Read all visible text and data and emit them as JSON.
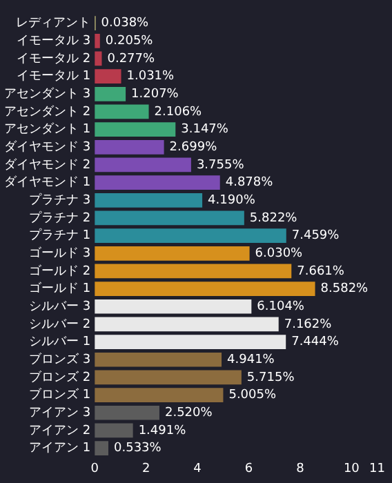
{
  "chart_data": {
    "type": "bar",
    "orientation": "horizontal",
    "categories": [
      "レディアント",
      "イモータル 3",
      "イモータル 2",
      "イモータル 1",
      "アセンダント 3",
      "アセンダント 2",
      "アセンダント 1",
      "ダイヤモンド 3",
      "ダイヤモンド 2",
      "ダイヤモンド 1",
      "プラチナ 3",
      "プラチナ 2",
      "プラチナ 1",
      "ゴールド 3",
      "ゴールド 2",
      "ゴールド 1",
      "シルバー 3",
      "シルバー 2",
      "シルバー 1",
      "ブロンズ 3",
      "ブロンズ 2",
      "ブロンズ 1",
      "アイアン 3",
      "アイアン 2",
      "アイアン 1"
    ],
    "values": [
      0.038,
      0.205,
      0.277,
      1.031,
      1.207,
      2.106,
      3.147,
      2.699,
      3.755,
      4.878,
      4.19,
      5.822,
      7.459,
      6.03,
      7.661,
      8.582,
      6.104,
      7.162,
      7.444,
      4.941,
      5.715,
      5.005,
      2.52,
      1.491,
      0.533
    ],
    "value_labels": [
      "0.038%",
      "0.205%",
      "0.277%",
      "1.031%",
      "1.207%",
      "2.106%",
      "3.147%",
      "2.699%",
      "3.755%",
      "4.878%",
      "4.190%",
      "5.822%",
      "7.459%",
      "6.030%",
      "7.661%",
      "8.582%",
      "6.104%",
      "7.162%",
      "7.444%",
      "4.941%",
      "5.715%",
      "5.005%",
      "2.520%",
      "1.491%",
      "0.533%"
    ],
    "colors": [
      "#c9c47e",
      "#b83a4c",
      "#b83a4c",
      "#b83a4c",
      "#3ea878",
      "#3ea878",
      "#3ea878",
      "#7c4cb3",
      "#7c4cb3",
      "#7c4cb3",
      "#2b8d9b",
      "#2b8d9b",
      "#2b8d9b",
      "#d6901d",
      "#d6901d",
      "#d6901d",
      "#e8e8e8",
      "#e8e8e8",
      "#e8e8e8",
      "#8c6c3e",
      "#8c6c3e",
      "#8c6c3e",
      "#5c5c5c",
      "#5c5c5c",
      "#5c5c5c"
    ],
    "xlim": [
      0,
      11
    ],
    "xticks": [
      0,
      2,
      4,
      6,
      8,
      10,
      11
    ],
    "grid": false,
    "legend": false
  }
}
